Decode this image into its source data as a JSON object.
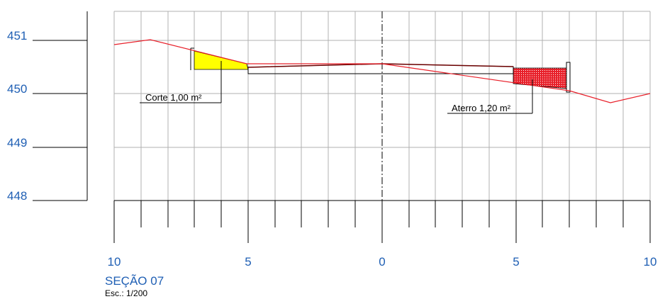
{
  "section": {
    "title": "SEÇÃO 07",
    "scale": "Esc.: 1/200"
  },
  "elevations": [
    "451",
    "450",
    "449",
    "448"
  ],
  "offsets": [
    "10",
    "5",
    "0",
    "5",
    "10"
  ],
  "cut": {
    "label": "Corte 1,00 m²",
    "color": "#ffff00"
  },
  "fill": {
    "label": "Aterro 1,20 m²",
    "color": "#e8202a"
  },
  "colors": {
    "terrain": "#e8202a",
    "labels": "#1f5fb4",
    "grid": "#b0b0b0",
    "road": "#6b0000"
  }
}
